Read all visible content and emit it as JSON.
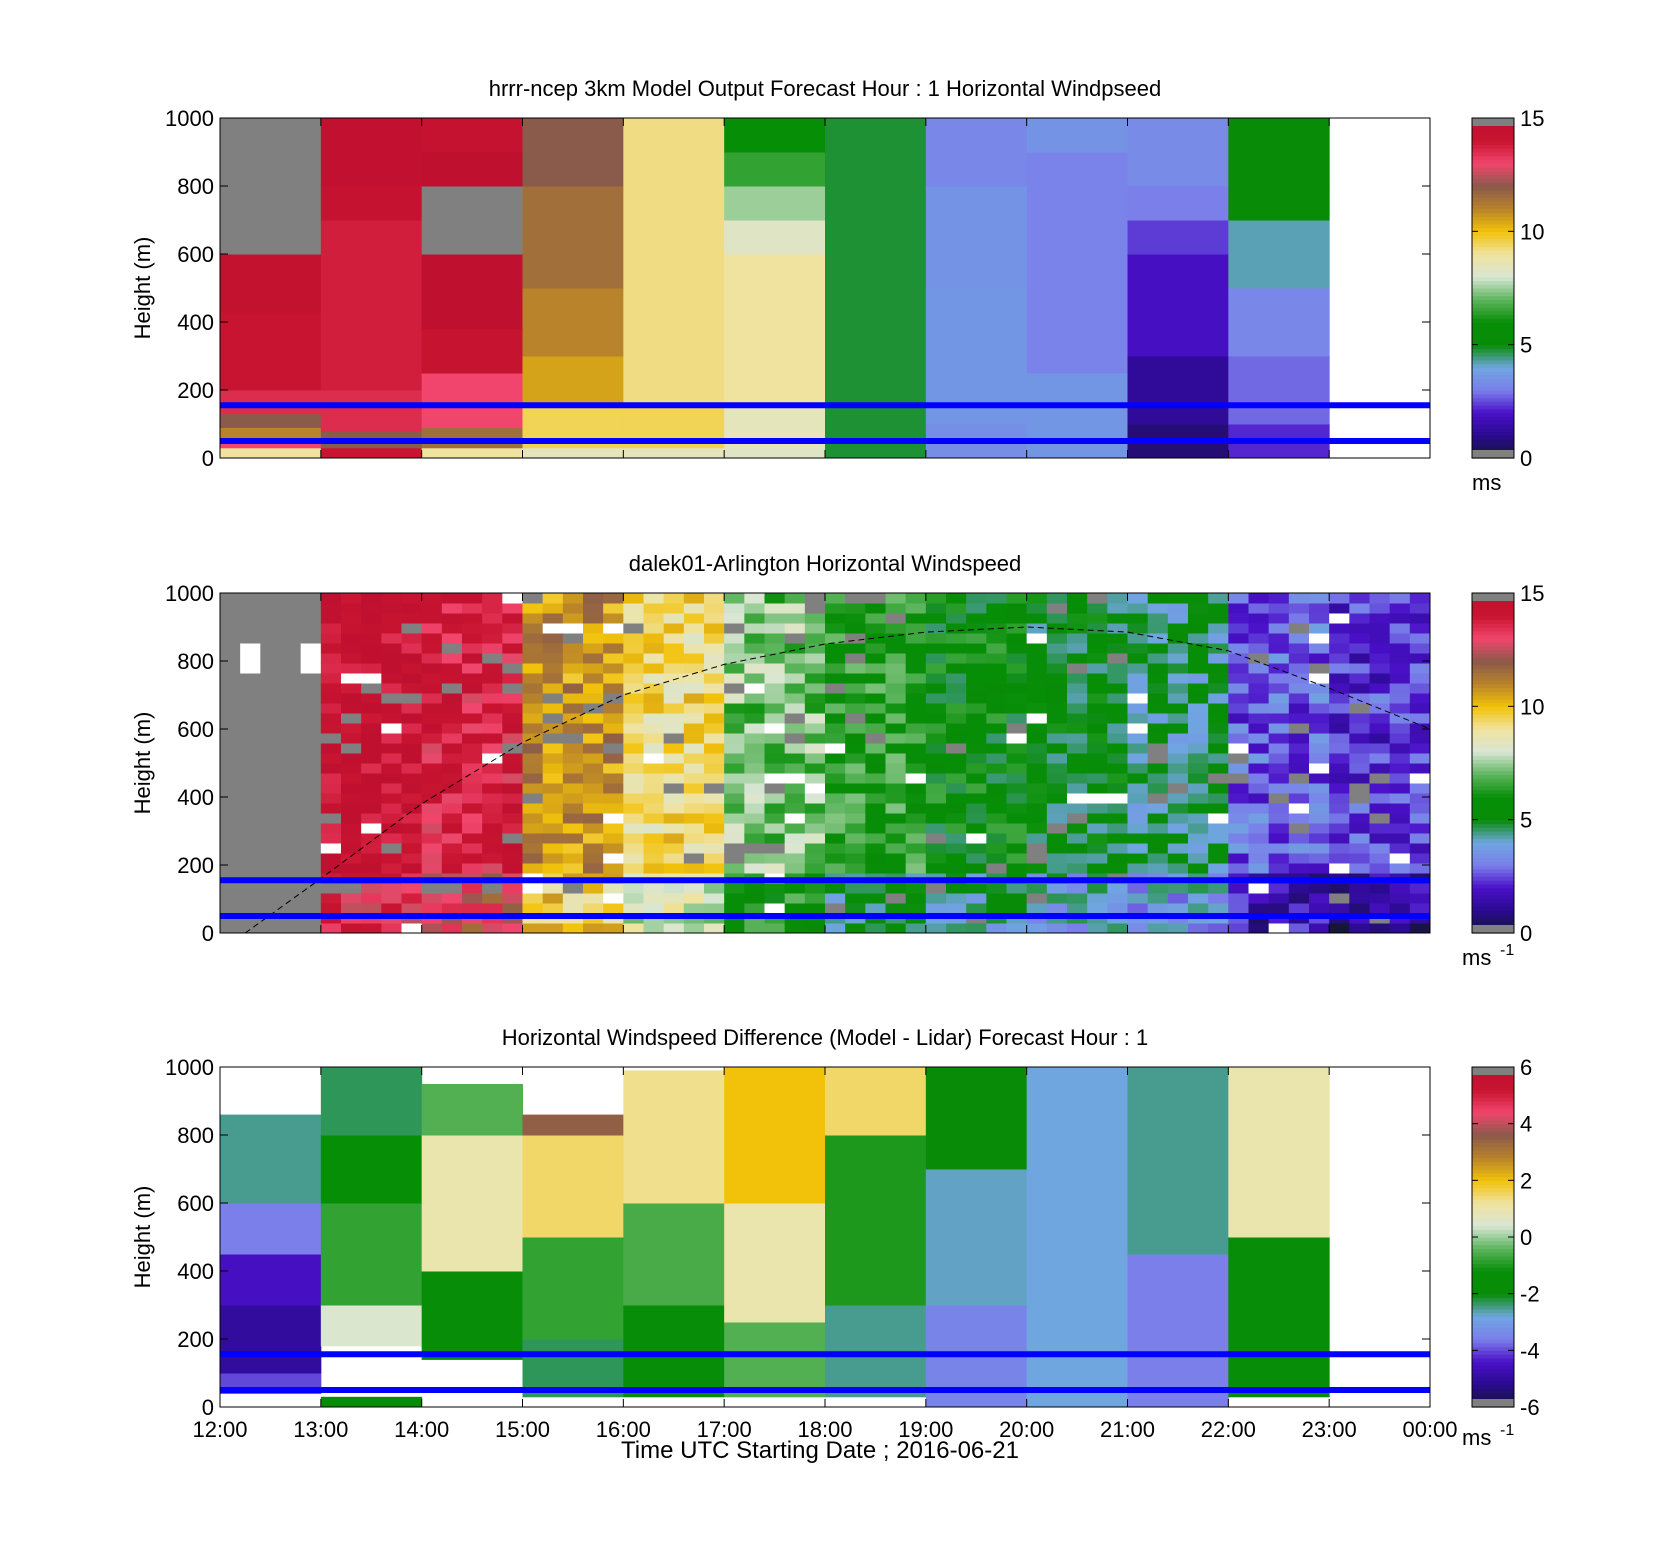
{
  "figure": {
    "xlabel": "Time UTC  Starting Date ; 2016-06-21",
    "x_ticks": [
      "12:00",
      "13:00",
      "14:00",
      "15:00",
      "16:00",
      "17:00",
      "18:00",
      "19:00",
      "20:00",
      "21:00",
      "22:00",
      "23:00",
      "00:00"
    ]
  },
  "colors": {
    "reference_line": "#0000ff",
    "missing": "#808080",
    "colormap": [
      "#161638",
      "#2a0a8f",
      "#4a10c8",
      "#7a7fea",
      "#6fa6e0",
      "#088c08",
      "#078e07",
      "#5db55d",
      "#d8e6d4",
      "#f0e3a0",
      "#f2c20a",
      "#b8832a",
      "#8a5a4a",
      "#f2456d",
      "#c81430",
      "#c01030"
    ]
  },
  "chart_data": [
    {
      "type": "heatmap",
      "title": "hrrr-ncep 3km Model Output   Forecast Hour : 1 Horizontal Windpseed",
      "ylabel": "Height (m)",
      "ylim": [
        0,
        1000
      ],
      "y_ticks": [
        "0",
        "200",
        "400",
        "600",
        "800",
        "1000"
      ],
      "x_domain_hours": [
        12,
        24
      ],
      "colorbar": {
        "range": [
          0,
          15
        ],
        "ticks": [
          "0",
          "5",
          "10",
          "15"
        ],
        "units": "ms",
        "units_sup": ""
      },
      "reference_lines_m": [
        50,
        155
      ],
      "columns": [
        {
          "start": 12,
          "end": 13,
          "levels": [
            {
              "bottom": 0,
              "top": 30,
              "value": 9
            },
            {
              "bottom": 30,
              "top": 60,
              "value": 13
            },
            {
              "bottom": 60,
              "top": 90,
              "value": 11
            },
            {
              "bottom": 90,
              "top": 130,
              "value": 12
            },
            {
              "bottom": 130,
              "top": 200,
              "value": 13.5
            },
            {
              "bottom": 200,
              "top": 430,
              "value": 14
            },
            {
              "bottom": 430,
              "top": 600,
              "value": 14.6
            },
            {
              "bottom": 600,
              "top": 1000,
              "value": "missing"
            }
          ]
        },
        {
          "start": 13,
          "end": 14,
          "levels": [
            {
              "bottom": 0,
              "top": 30,
              "value": 14
            },
            {
              "bottom": 30,
              "top": 80,
              "value": 12
            },
            {
              "bottom": 80,
              "top": 200,
              "value": 13.5
            },
            {
              "bottom": 200,
              "top": 700,
              "value": 13.8
            },
            {
              "bottom": 700,
              "top": 800,
              "value": 14.5
            },
            {
              "bottom": 800,
              "top": 1000,
              "value": 14.8
            }
          ]
        },
        {
          "start": 14,
          "end": 15,
          "levels": [
            {
              "bottom": 0,
              "top": 30,
              "value": 9
            },
            {
              "bottom": 30,
              "top": 90,
              "value": 11.5
            },
            {
              "bottom": 90,
              "top": 250,
              "value": 13
            },
            {
              "bottom": 250,
              "top": 380,
              "value": 14.3
            },
            {
              "bottom": 380,
              "top": 600,
              "value": 15
            },
            {
              "bottom": 600,
              "top": 800,
              "value": "missing"
            },
            {
              "bottom": 800,
              "top": 900,
              "value": 15
            },
            {
              "bottom": 900,
              "top": 1000,
              "value": 14.5
            }
          ]
        },
        {
          "start": 15,
          "end": 16,
          "levels": [
            {
              "bottom": 0,
              "top": 30,
              "value": 8.5
            },
            {
              "bottom": 30,
              "top": 150,
              "value": 9.5
            },
            {
              "bottom": 150,
              "top": 300,
              "value": 10.5
            },
            {
              "bottom": 300,
              "top": 500,
              "value": 11
            },
            {
              "bottom": 500,
              "top": 800,
              "value": 11.5
            },
            {
              "bottom": 800,
              "top": 1000,
              "value": 12
            }
          ]
        },
        {
          "start": 16,
          "end": 17,
          "levels": [
            {
              "bottom": 0,
              "top": 30,
              "value": 8.5
            },
            {
              "bottom": 30,
              "top": 150,
              "value": 9.5
            },
            {
              "bottom": 150,
              "top": 1000,
              "value": 9.2
            }
          ]
        },
        {
          "start": 17,
          "end": 18,
          "levels": [
            {
              "bottom": 0,
              "top": 30,
              "value": 8.3
            },
            {
              "bottom": 30,
              "top": 150,
              "value": 8.5
            },
            {
              "bottom": 150,
              "top": 600,
              "value": 9
            },
            {
              "bottom": 600,
              "top": 700,
              "value": 8.3
            },
            {
              "bottom": 700,
              "top": 800,
              "value": 7.5
            },
            {
              "bottom": 800,
              "top": 900,
              "value": 6.5
            },
            {
              "bottom": 900,
              "top": 1000,
              "value": 5.8
            }
          ]
        },
        {
          "start": 18,
          "end": 19,
          "levels": [
            {
              "bottom": 0,
              "top": 1000,
              "value": 4.8
            }
          ]
        },
        {
          "start": 19,
          "end": 20,
          "levels": [
            {
              "bottom": 0,
              "top": 100,
              "value": 3.4
            },
            {
              "bottom": 100,
              "top": 500,
              "value": 3.6
            },
            {
              "bottom": 500,
              "top": 800,
              "value": 3.5
            },
            {
              "bottom": 800,
              "top": 1000,
              "value": 3.2
            }
          ]
        },
        {
          "start": 20,
          "end": 21,
          "levels": [
            {
              "bottom": 0,
              "top": 250,
              "value": 3.6
            },
            {
              "bottom": 250,
              "top": 900,
              "value": 3.1
            },
            {
              "bottom": 900,
              "top": 1000,
              "value": 3.5
            }
          ]
        },
        {
          "start": 21,
          "end": 22,
          "levels": [
            {
              "bottom": 0,
              "top": 100,
              "value": 0.7
            },
            {
              "bottom": 100,
              "top": 300,
              "value": 1.2
            },
            {
              "bottom": 300,
              "top": 600,
              "value": 1.9
            },
            {
              "bottom": 600,
              "top": 700,
              "value": 2.4
            },
            {
              "bottom": 700,
              "top": 800,
              "value": 3
            },
            {
              "bottom": 800,
              "top": 1000,
              "value": 3.3
            }
          ]
        },
        {
          "start": 22,
          "end": 23,
          "levels": [
            {
              "bottom": 0,
              "top": 100,
              "value": 2.2
            },
            {
              "bottom": 100,
              "top": 300,
              "value": 2.8
            },
            {
              "bottom": 300,
              "top": 500,
              "value": 3.2
            },
            {
              "bottom": 500,
              "top": 700,
              "value": 4.2
            },
            {
              "bottom": 700,
              "top": 800,
              "value": 5
            },
            {
              "bottom": 800,
              "top": 1000,
              "value": 5.2
            }
          ]
        }
      ]
    },
    {
      "type": "heatmap",
      "title": "dalek01-Arlington  Horizontal Windspeed",
      "ylabel": "Height (m)",
      "ylim": [
        0,
        1000
      ],
      "y_ticks": [
        "0",
        "200",
        "400",
        "600",
        "800",
        "1000"
      ],
      "x_domain_hours": [
        12,
        24
      ],
      "colorbar": {
        "range": [
          0,
          15
        ],
        "ticks": [
          "0",
          "5",
          "10",
          "15"
        ],
        "units": "ms",
        "units_sup": "-1"
      },
      "reference_lines_m": [
        50,
        155
      ],
      "overlay_curve": {
        "style": "dashed",
        "points": [
          [
            12.25,
            0
          ],
          [
            13,
            160
          ],
          [
            14,
            380
          ],
          [
            15,
            560
          ],
          [
            16,
            700
          ],
          [
            17,
            790
          ],
          [
            18,
            850
          ],
          [
            19,
            885
          ],
          [
            20,
            900
          ],
          [
            21,
            885
          ],
          [
            22,
            830
          ],
          [
            23,
            720
          ],
          [
            24,
            600
          ]
        ]
      },
      "columns_hourly_mean": [
        {
          "hour": 12,
          "value": "missing"
        },
        {
          "hour": 13,
          "value": 14.5
        },
        {
          "hour": 14,
          "value": 13.8
        },
        {
          "hour": 15,
          "value": 10.8
        },
        {
          "hour": 16,
          "value": 9.3
        },
        {
          "hour": 17,
          "value": 7.2
        },
        {
          "hour": 18,
          "value": 6.2
        },
        {
          "hour": 19,
          "value": 5.6
        },
        {
          "hour": 20,
          "value": 5.2
        },
        {
          "hour": 21,
          "value": 4.8
        },
        {
          "hour": 22,
          "value": 2.8
        },
        {
          "hour": 23,
          "value": 2.3
        }
      ]
    },
    {
      "type": "heatmap",
      "title": "Horizontal Windspeed Difference (Model - Lidar) Forecast Hour : 1",
      "ylabel": "Height (m)",
      "ylim": [
        0,
        1000
      ],
      "y_ticks": [
        "0",
        "200",
        "400",
        "600",
        "800",
        "1000"
      ],
      "x_domain_hours": [
        12,
        24
      ],
      "colorbar": {
        "range": [
          -6,
          6
        ],
        "ticks": [
          "-6",
          "-4",
          "-2",
          "0",
          "2",
          "4",
          "6"
        ],
        "units": "ms",
        "units_sup": "-1"
      },
      "reference_lines_m": [
        50,
        155
      ],
      "columns": [
        {
          "start": 12,
          "end": 13,
          "levels": [
            {
              "bottom": 40,
              "top": 100,
              "value": -4
            },
            {
              "bottom": 100,
              "top": 300,
              "value": -5
            },
            {
              "bottom": 300,
              "top": 450,
              "value": -4.5
            },
            {
              "bottom": 450,
              "top": 600,
              "value": -3.6
            },
            {
              "bottom": 600,
              "top": 860,
              "value": -2.5
            }
          ]
        },
        {
          "start": 13,
          "end": 14,
          "levels": [
            {
              "bottom": 0,
              "top": 30,
              "value": -2
            },
            {
              "bottom": 180,
              "top": 300,
              "value": 0.5
            },
            {
              "bottom": 300,
              "top": 600,
              "value": -0.8
            },
            {
              "bottom": 600,
              "top": 800,
              "value": -1.2
            },
            {
              "bottom": 800,
              "top": 1000,
              "value": -2.3
            }
          ]
        },
        {
          "start": 14,
          "end": 15,
          "levels": [
            {
              "bottom": 140,
              "top": 400,
              "value": -1.8
            },
            {
              "bottom": 400,
              "top": 800,
              "value": 1
            },
            {
              "bottom": 800,
              "top": 950,
              "value": -0.5
            }
          ]
        },
        {
          "start": 15,
          "end": 16,
          "levels": [
            {
              "bottom": 30,
              "top": 200,
              "value": -2.3
            },
            {
              "bottom": 200,
              "top": 500,
              "value": -0.8
            },
            {
              "bottom": 500,
              "top": 800,
              "value": 1.5
            },
            {
              "bottom": 800,
              "top": 860,
              "value": 3.5
            }
          ]
        },
        {
          "start": 16,
          "end": 17,
          "levels": [
            {
              "bottom": 30,
              "top": 300,
              "value": -1.8
            },
            {
              "bottom": 300,
              "top": 600,
              "value": -0.6
            },
            {
              "bottom": 600,
              "top": 990,
              "value": 1.3
            }
          ]
        },
        {
          "start": 17,
          "end": 18,
          "levels": [
            {
              "bottom": 30,
              "top": 250,
              "value": -0.5
            },
            {
              "bottom": 250,
              "top": 600,
              "value": 1
            },
            {
              "bottom": 600,
              "top": 1000,
              "value": 2
            }
          ]
        },
        {
          "start": 18,
          "end": 19,
          "levels": [
            {
              "bottom": 30,
              "top": 300,
              "value": -2.5
            },
            {
              "bottom": 300,
              "top": 800,
              "value": -1
            },
            {
              "bottom": 800,
              "top": 1000,
              "value": 1.5
            }
          ]
        },
        {
          "start": 19,
          "end": 20,
          "levels": [
            {
              "bottom": 0,
              "top": 300,
              "value": -3.5
            },
            {
              "bottom": 300,
              "top": 700,
              "value": -2.7
            },
            {
              "bottom": 700,
              "top": 1000,
              "value": -2
            }
          ]
        },
        {
          "start": 20,
          "end": 21,
          "levels": [
            {
              "bottom": 0,
              "top": 1000,
              "value": -2.8
            }
          ]
        },
        {
          "start": 21,
          "end": 22,
          "levels": [
            {
              "bottom": 0,
              "top": 450,
              "value": -3.6
            },
            {
              "bottom": 450,
              "top": 1000,
              "value": -2.5
            }
          ]
        },
        {
          "start": 22,
          "end": 23,
          "levels": [
            {
              "bottom": 30,
              "top": 500,
              "value": -1.5
            },
            {
              "bottom": 500,
              "top": 1000,
              "value": 1
            }
          ]
        }
      ]
    }
  ]
}
